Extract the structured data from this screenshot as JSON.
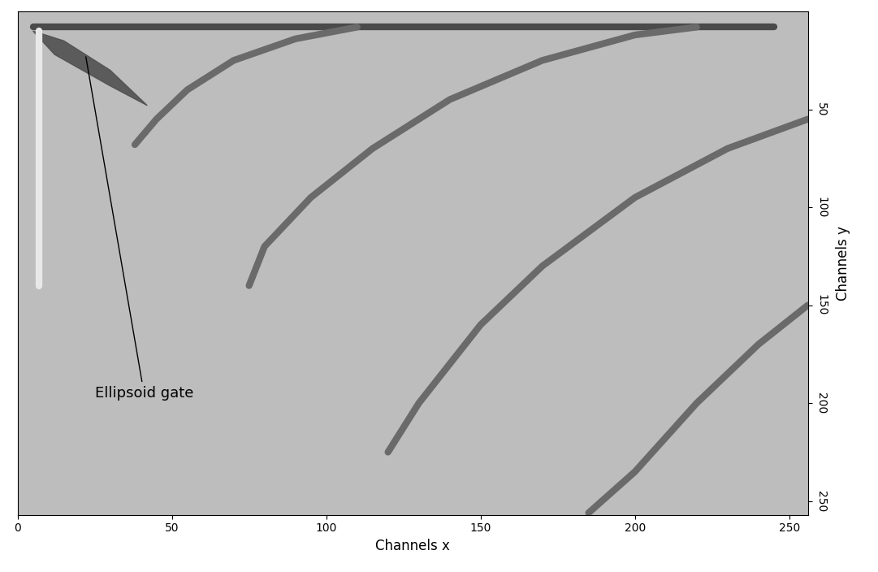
{
  "chart_data": {
    "type": "line",
    "x_label": "Channels x",
    "y_label": "Channels y",
    "xlim": [
      0,
      256
    ],
    "xticks": [
      0,
      50,
      100,
      150,
      200,
      250
    ],
    "ylim": [
      257,
      0
    ],
    "yticks": [
      50,
      100,
      150,
      200,
      250
    ],
    "grid": false,
    "series": [
      {
        "type": "line",
        "color": "#4a4a4a",
        "line_style": "solid",
        "x": [
          5,
          245
        ],
        "values": [
          8,
          8
        ]
      },
      {
        "type": "line",
        "color": "#e8e8e8",
        "line_style": "solid",
        "x": [
          7,
          7
        ],
        "values": [
          10,
          140
        ]
      },
      {
        "type": "line",
        "color": "#6a6a6a",
        "line_style": "solid",
        "x": [
          38,
          45,
          55,
          70,
          90,
          110
        ],
        "values": [
          68,
          55,
          40,
          25,
          14,
          8
        ]
      },
      {
        "type": "line",
        "color": "#6a6a6a",
        "line_style": "solid",
        "x": [
          75,
          80,
          95,
          115,
          140,
          170,
          200,
          220
        ],
        "values": [
          140,
          120,
          95,
          70,
          45,
          25,
          12,
          8
        ]
      },
      {
        "type": "line",
        "color": "#6a6a6a",
        "line_style": "solid",
        "x": [
          120,
          130,
          150,
          170,
          200,
          230,
          256
        ],
        "values": [
          225,
          200,
          160,
          130,
          95,
          70,
          55
        ]
      },
      {
        "type": "line",
        "color": "#6a6a6a",
        "line_style": "solid",
        "x": [
          185,
          200,
          220,
          240,
          256
        ],
        "values": [
          256,
          235,
          200,
          170,
          150
        ]
      },
      {
        "type": "fill",
        "color": "#505050",
        "x": [
          5,
          15,
          30,
          42,
          30,
          12,
          5
        ],
        "values": [
          10,
          15,
          30,
          48,
          38,
          22,
          10
        ]
      }
    ],
    "annotations": [
      {
        "text": "Ellipsoid gate",
        "point": [
          22,
          22
        ],
        "text_at": [
          25,
          195
        ]
      }
    ]
  }
}
